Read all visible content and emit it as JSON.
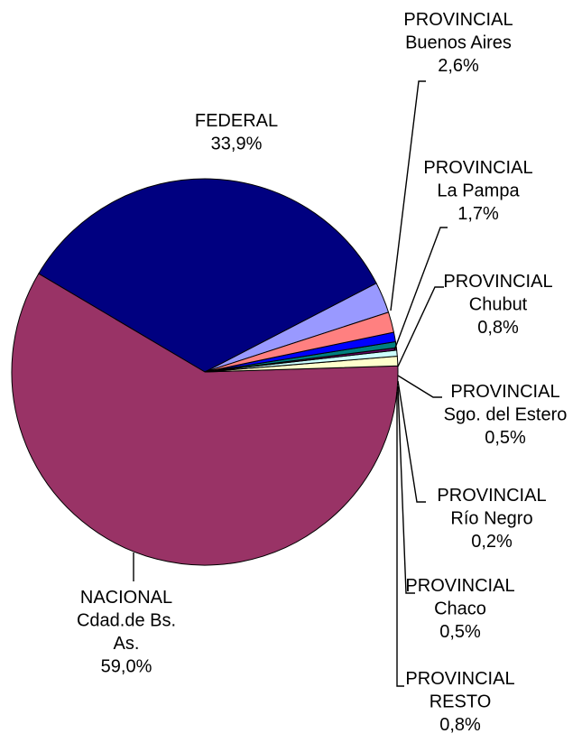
{
  "chart_data": {
    "type": "pie",
    "start_angle_deg": -18,
    "direction": "counterclockwise",
    "slices": [
      {
        "lines": [
          "PROVINCIAL",
          "Buenos Aires"
        ],
        "value_label": "2,6%",
        "value": 2.6,
        "color": "#9999FF"
      },
      {
        "lines": [
          "FEDERAL"
        ],
        "value_label": "33,9%",
        "value": 33.9,
        "color": "#000080"
      },
      {
        "lines": [
          "NACIONAL",
          "Cdad.de Bs.",
          "As."
        ],
        "value_label": "59,0%",
        "value": 59.0,
        "color": "#993366"
      },
      {
        "lines": [
          "PROVINCIAL",
          "RESTO"
        ],
        "value_label": "0,8%",
        "value": 0.8,
        "color": "#FFFFCC"
      },
      {
        "lines": [
          "PROVINCIAL",
          "Chaco"
        ],
        "value_label": "0,5%",
        "value": 0.5,
        "color": "#CCFFFF"
      },
      {
        "lines": [
          "PROVINCIAL",
          "Río Negro"
        ],
        "value_label": "0,2%",
        "value": 0.2,
        "color": "#660066"
      },
      {
        "lines": [
          "PROVINCIAL",
          "Sgo. del Estero"
        ],
        "value_label": "0,5%",
        "value": 0.5,
        "color": "#008080"
      },
      {
        "lines": [
          "PROVINCIAL",
          "Chubut"
        ],
        "value_label": "0,8%",
        "value": 0.8,
        "color": "#0000FF"
      },
      {
        "lines": [
          "PROVINCIAL",
          "La Pampa"
        ],
        "value_label": "1,7%",
        "value": 1.7,
        "color": "#FF8080"
      }
    ]
  }
}
